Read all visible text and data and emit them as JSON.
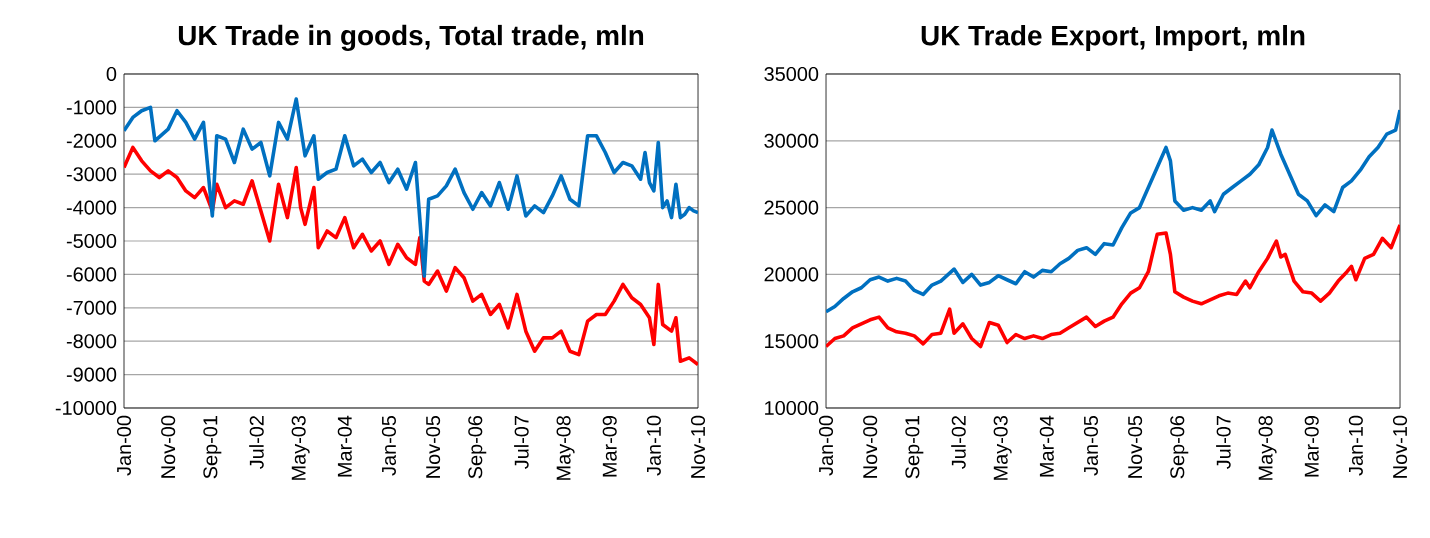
{
  "chart_data": [
    {
      "type": "line",
      "title": "UK Trade in goods, Total trade, mln",
      "grid": "y",
      "marker": "none",
      "line_style": "solid",
      "xlim": [
        "2000-01",
        "2010-11"
      ],
      "xticks": [
        {
          "value": "2000-01",
          "label": "Jan-00"
        },
        {
          "value": "2000-11",
          "label": "Nov-00"
        },
        {
          "value": "2001-09",
          "label": "Sep-01"
        },
        {
          "value": "2002-07",
          "label": "Jul-02"
        },
        {
          "value": "2003-05",
          "label": "May-03"
        },
        {
          "value": "2004-03",
          "label": "Mar-04"
        },
        {
          "value": "2005-01",
          "label": "Jan-05"
        },
        {
          "value": "2005-11",
          "label": "Nov-05"
        },
        {
          "value": "2006-09",
          "label": "Sep-06"
        },
        {
          "value": "2007-07",
          "label": "Jul-07"
        },
        {
          "value": "2008-05",
          "label": "May-08"
        },
        {
          "value": "2009-03",
          "label": "Mar-09"
        },
        {
          "value": "2010-01",
          "label": "Jan-10"
        },
        {
          "value": "2010-11",
          "label": "Nov-10"
        }
      ],
      "ylim": [
        -10000,
        0
      ],
      "yticks": [
        -10000,
        -9000,
        -8000,
        -7000,
        -6000,
        -5000,
        -4000,
        -3000,
        -2000,
        -1000,
        0
      ],
      "series": [
        {
          "color": "#ff0000",
          "x": [
            "2000-01",
            "2000-03",
            "2000-05",
            "2000-07",
            "2000-09",
            "2000-11",
            "2001-01",
            "2001-03",
            "2001-05",
            "2001-07",
            "2001-09",
            "2001-10",
            "2001-12",
            "2002-02",
            "2002-04",
            "2002-06",
            "2002-08",
            "2002-10",
            "2002-12",
            "2003-02",
            "2003-04",
            "2003-05",
            "2003-06",
            "2003-08",
            "2003-09",
            "2003-11",
            "2004-01",
            "2004-03",
            "2004-05",
            "2004-07",
            "2004-09",
            "2004-11",
            "2005-01",
            "2005-03",
            "2005-05",
            "2005-07",
            "2005-08",
            "2005-09",
            "2005-10",
            "2005-12",
            "2006-02",
            "2006-04",
            "2006-06",
            "2006-08",
            "2006-10",
            "2006-12",
            "2007-02",
            "2007-04",
            "2007-06",
            "2007-08",
            "2007-10",
            "2007-12",
            "2008-02",
            "2008-04",
            "2008-06",
            "2008-08",
            "2008-10",
            "2008-12",
            "2009-02",
            "2009-04",
            "2009-06",
            "2009-08",
            "2009-10",
            "2009-12",
            "2010-01",
            "2010-02",
            "2010-03",
            "2010-05",
            "2010-06",
            "2010-07",
            "2010-09",
            "2010-11"
          ],
          "values": [
            -2800,
            -2200,
            -2600,
            -2900,
            -3100,
            -2900,
            -3100,
            -3500,
            -3700,
            -3400,
            -4100,
            -3300,
            -4000,
            -3800,
            -3900,
            -3200,
            -4100,
            -5000,
            -3300,
            -4300,
            -2800,
            -4000,
            -4500,
            -3400,
            -5200,
            -4700,
            -4900,
            -4300,
            -5200,
            -4800,
            -5300,
            -5000,
            -5700,
            -5100,
            -5500,
            -5700,
            -4900,
            -6200,
            -6300,
            -5900,
            -6500,
            -5800,
            -6100,
            -6800,
            -6600,
            -7200,
            -6900,
            -7600,
            -6600,
            -7700,
            -8300,
            -7900,
            -7900,
            -7700,
            -8300,
            -8400,
            -7400,
            -7200,
            -7200,
            -6800,
            -6300,
            -6700,
            -6900,
            -7300,
            -8100,
            -6300,
            -7500,
            -7700,
            -7300,
            -8600,
            -8500,
            -8700
          ]
        },
        {
          "color": "#0070c0",
          "x": [
            "2000-01",
            "2000-03",
            "2000-05",
            "2000-07",
            "2000-08",
            "2000-11",
            "2001-01",
            "2001-03",
            "2001-05",
            "2001-07",
            "2001-09",
            "2001-10",
            "2001-12",
            "2002-02",
            "2002-04",
            "2002-06",
            "2002-08",
            "2002-10",
            "2002-12",
            "2003-02",
            "2003-04",
            "2003-06",
            "2003-08",
            "2003-09",
            "2003-11",
            "2004-01",
            "2004-03",
            "2004-05",
            "2004-07",
            "2004-09",
            "2004-11",
            "2005-01",
            "2005-03",
            "2005-05",
            "2005-07",
            "2005-09",
            "2005-10",
            "2005-12",
            "2006-02",
            "2006-04",
            "2006-06",
            "2006-08",
            "2006-10",
            "2006-12",
            "2007-02",
            "2007-04",
            "2007-06",
            "2007-08",
            "2007-10",
            "2007-12",
            "2008-02",
            "2008-04",
            "2008-06",
            "2008-08",
            "2008-10",
            "2008-12",
            "2009-02",
            "2009-04",
            "2009-06",
            "2009-08",
            "2009-10",
            "2009-11",
            "2009-12",
            "2010-01",
            "2010-02",
            "2010-03",
            "2010-04",
            "2010-05",
            "2010-06",
            "2010-07",
            "2010-08",
            "2010-09",
            "2010-10",
            "2010-11"
          ],
          "values": [
            -1700,
            -1300,
            -1100,
            -1000,
            -2000,
            -1650,
            -1100,
            -1450,
            -1950,
            -1450,
            -4250,
            -1850,
            -1950,
            -2650,
            -1650,
            -2250,
            -2050,
            -3050,
            -1450,
            -1950,
            -750,
            -2450,
            -1850,
            -3150,
            -2950,
            -2850,
            -1850,
            -2750,
            -2550,
            -2950,
            -2650,
            -3250,
            -2850,
            -3450,
            -2650,
            -6050,
            -3750,
            -3650,
            -3350,
            -2850,
            -3550,
            -4050,
            -3550,
            -3950,
            -3250,
            -4050,
            -3050,
            -4250,
            -3950,
            -4150,
            -3650,
            -3050,
            -3750,
            -3950,
            -1850,
            -1850,
            -2350,
            -2950,
            -2650,
            -2750,
            -3150,
            -2350,
            -3250,
            -3500,
            -2050,
            -4000,
            -3800,
            -4300,
            -3300,
            -4300,
            -4200,
            -4000,
            -4100,
            -4150
          ]
        }
      ]
    },
    {
      "type": "line",
      "title": "UK Trade Export, Import, mln",
      "grid": "y",
      "marker": "none",
      "line_style": "solid",
      "xlim": [
        "2000-01",
        "2010-11"
      ],
      "xticks": [
        {
          "value": "2000-01",
          "label": "Jan-00"
        },
        {
          "value": "2000-11",
          "label": "Nov-00"
        },
        {
          "value": "2001-09",
          "label": "Sep-01"
        },
        {
          "value": "2002-07",
          "label": "Jul-02"
        },
        {
          "value": "2003-05",
          "label": "May-03"
        },
        {
          "value": "2004-03",
          "label": "Mar-04"
        },
        {
          "value": "2005-01",
          "label": "Jan-05"
        },
        {
          "value": "2005-11",
          "label": "Nov-05"
        },
        {
          "value": "2006-09",
          "label": "Sep-06"
        },
        {
          "value": "2007-07",
          "label": "Jul-07"
        },
        {
          "value": "2008-05",
          "label": "May-08"
        },
        {
          "value": "2009-03",
          "label": "Mar-09"
        },
        {
          "value": "2010-01",
          "label": "Jan-10"
        },
        {
          "value": "2010-11",
          "label": "Nov-10"
        }
      ],
      "ylim": [
        10000,
        35000
      ],
      "yticks": [
        10000,
        15000,
        20000,
        25000,
        30000,
        35000
      ],
      "series": [
        {
          "color": "#0070c0",
          "x": [
            "2000-01",
            "2000-03",
            "2000-05",
            "2000-07",
            "2000-09",
            "2000-11",
            "2001-01",
            "2001-03",
            "2001-05",
            "2001-07",
            "2001-09",
            "2001-11",
            "2002-01",
            "2002-03",
            "2002-06",
            "2002-08",
            "2002-10",
            "2002-12",
            "2003-02",
            "2003-04",
            "2003-06",
            "2003-08",
            "2003-10",
            "2003-12",
            "2004-02",
            "2004-04",
            "2004-06",
            "2004-08",
            "2004-10",
            "2004-12",
            "2005-02",
            "2005-04",
            "2005-06",
            "2005-08",
            "2005-10",
            "2005-12",
            "2006-02",
            "2006-04",
            "2006-06",
            "2006-07",
            "2006-08",
            "2006-10",
            "2006-12",
            "2007-02",
            "2007-04",
            "2007-05",
            "2007-07",
            "2007-09",
            "2007-11",
            "2008-01",
            "2008-03",
            "2008-05",
            "2008-06",
            "2008-08",
            "2008-10",
            "2008-12",
            "2009-02",
            "2009-04",
            "2009-06",
            "2009-08",
            "2009-10",
            "2009-12",
            "2010-02",
            "2010-04",
            "2010-06",
            "2010-08",
            "2010-10",
            "2010-11"
          ],
          "values": [
            17200,
            17600,
            18200,
            18700,
            19000,
            19600,
            19800,
            19500,
            19700,
            19500,
            18800,
            18500,
            19200,
            19500,
            20400,
            19400,
            20000,
            19200,
            19400,
            19900,
            19600,
            19300,
            20200,
            19800,
            20300,
            20200,
            20800,
            21200,
            21800,
            22000,
            21500,
            22300,
            22200,
            23500,
            24600,
            25000,
            26500,
            28000,
            29500,
            28500,
            25500,
            24800,
            25000,
            24800,
            25500,
            24700,
            26000,
            26500,
            27000,
            27500,
            28200,
            29500,
            30800,
            29000,
            27500,
            26000,
            25500,
            24400,
            25200,
            24700,
            26500,
            27000,
            27800,
            28800,
            29500,
            30500,
            30800,
            32300
          ]
        },
        {
          "color": "#ff0000",
          "x": [
            "2000-01",
            "2000-03",
            "2000-05",
            "2000-07",
            "2000-09",
            "2000-11",
            "2001-01",
            "2001-03",
            "2001-05",
            "2001-07",
            "2001-09",
            "2001-11",
            "2002-01",
            "2002-03",
            "2002-05",
            "2002-06",
            "2002-08",
            "2002-10",
            "2002-12",
            "2003-02",
            "2003-04",
            "2003-06",
            "2003-08",
            "2003-10",
            "2003-12",
            "2004-02",
            "2004-04",
            "2004-06",
            "2004-08",
            "2004-10",
            "2004-12",
            "2005-02",
            "2005-04",
            "2005-06",
            "2005-08",
            "2005-10",
            "2005-12",
            "2006-02",
            "2006-04",
            "2006-06",
            "2006-07",
            "2006-08",
            "2006-10",
            "2006-12",
            "2007-02",
            "2007-04",
            "2007-06",
            "2007-08",
            "2007-10",
            "2007-12",
            "2008-01",
            "2008-03",
            "2008-05",
            "2008-07",
            "2008-08",
            "2008-09",
            "2008-11",
            "2009-01",
            "2009-03",
            "2009-05",
            "2009-07",
            "2009-09",
            "2009-11",
            "2009-12",
            "2010-01",
            "2010-03",
            "2010-05",
            "2010-07",
            "2010-09",
            "2010-11"
          ],
          "values": [
            14600,
            15200,
            15400,
            16000,
            16300,
            16600,
            16800,
            16000,
            15700,
            15600,
            15400,
            14800,
            15500,
            15600,
            17400,
            15600,
            16300,
            15200,
            14600,
            16400,
            16200,
            14900,
            15500,
            15200,
            15400,
            15200,
            15500,
            15600,
            16000,
            16400,
            16800,
            16100,
            16500,
            16800,
            17800,
            18600,
            19000,
            20200,
            23000,
            23100,
            21500,
            18700,
            18300,
            18000,
            17800,
            18100,
            18400,
            18600,
            18500,
            19500,
            19000,
            20200,
            21200,
            22500,
            21300,
            21500,
            19500,
            18700,
            18600,
            18000,
            18600,
            19500,
            20200,
            20600,
            19600,
            21200,
            21500,
            22700,
            22000,
            23700
          ]
        }
      ]
    }
  ]
}
